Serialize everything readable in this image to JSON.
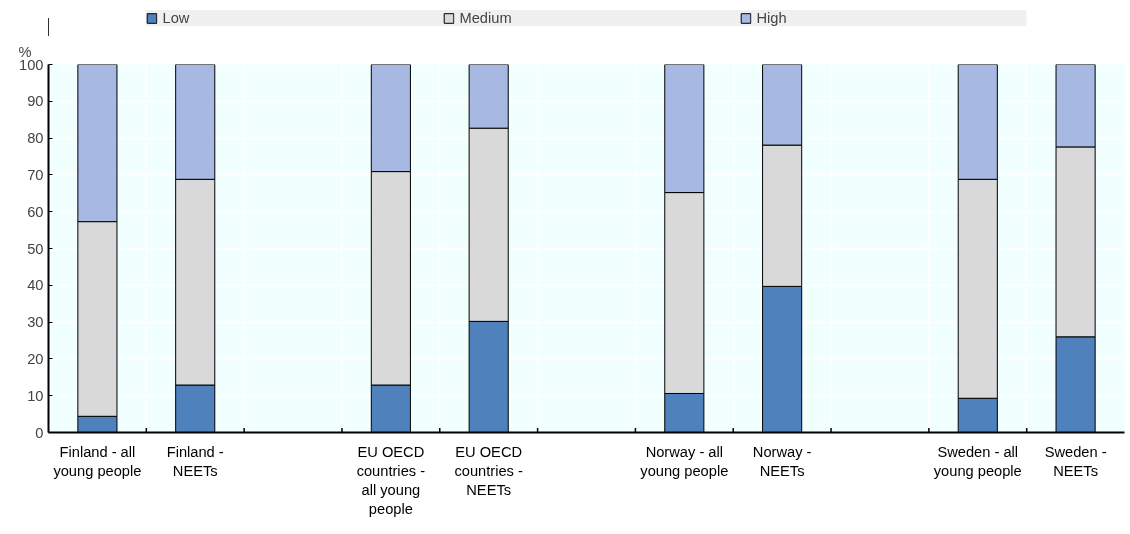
{
  "chart_data": {
    "type": "bar",
    "stacked": true,
    "ylabel": "%",
    "categories": [
      "Finland - all young people",
      "Finland - NEETs",
      null,
      "EU OECD countries - all young people",
      "EU OECD countries - NEETs",
      null,
      "Norway - all young people",
      "Norway - NEETs",
      null,
      "Sweden - all young people",
      "Sweden - NEETs"
    ],
    "series": [
      {
        "name": "Low",
        "color": "#4f81bd",
        "values": [
          4.4,
          12.9,
          null,
          12.9,
          30.2,
          null,
          10.6,
          39.7,
          null,
          9.3,
          26.0
        ]
      },
      {
        "name": "Medium",
        "color": "#d9d9d9",
        "values": [
          52.9,
          55.9,
          null,
          58.0,
          52.5,
          null,
          54.6,
          38.4,
          null,
          59.5,
          51.6
        ]
      },
      {
        "name": "High",
        "color": "#a7b8e3",
        "values": [
          42.7,
          31.2,
          null,
          29.1,
          17.3,
          null,
          34.8,
          21.9,
          null,
          31.2,
          22.4
        ]
      }
    ],
    "ylim": [
      0,
      100
    ],
    "yticks": [
      0,
      10,
      20,
      30,
      40,
      50,
      60,
      70,
      80,
      90,
      100
    ],
    "grid": true,
    "legend": "top"
  }
}
